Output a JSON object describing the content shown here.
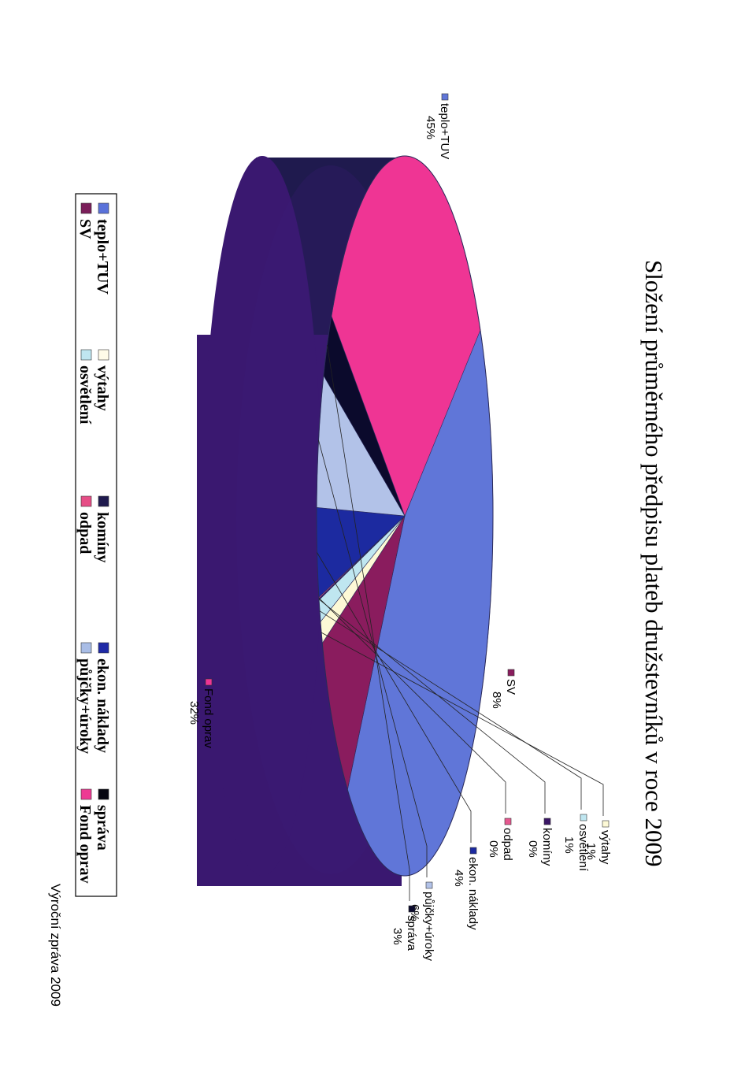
{
  "chart_data": {
    "type": "pie",
    "title": "Složení průměrného předpisu plateb družstevníků v roce 2009",
    "categories": [
      "teplo+TUV",
      "SV",
      "výtahy",
      "osvětlení",
      "komíny",
      "odpad",
      "ekon. náklady",
      "půjčky+úroky",
      "správa",
      "Fond oprav"
    ],
    "values": [
      45,
      8,
      1,
      1,
      0,
      0,
      4,
      6,
      3,
      32
    ],
    "value_labels": [
      "45%",
      "8%",
      "1%",
      "1%",
      "0%",
      "0%",
      "4%",
      "6%",
      "3%",
      "32%"
    ],
    "colors": [
      "#6076d8",
      "#8a1c5e",
      "#fdf9d6",
      "#bfe6f0",
      "#3b1666",
      "#e5588f",
      "#1c2aa0",
      "#b2c2e8",
      "#0b0a2c",
      "#ef3594"
    ],
    "legend_position": "bottom",
    "three_d": true
  },
  "legend": {
    "items": [
      "teplo+TUV",
      "SV",
      "výtahy",
      "osvětlení",
      "komíny",
      "odpad",
      "ekon. náklady",
      "půjčky+úroky",
      "správa",
      "Fond oprav"
    ],
    "colors": [
      "#5a72da",
      "#7b1e5a",
      "#fffbe8",
      "#bfe6f0",
      "#1f1a4e",
      "#e64d86",
      "#1f2aa6",
      "#a9bde6",
      "#050510",
      "#ee3a93"
    ]
  },
  "footer": {
    "text": "Výroční zpráva 2009"
  }
}
